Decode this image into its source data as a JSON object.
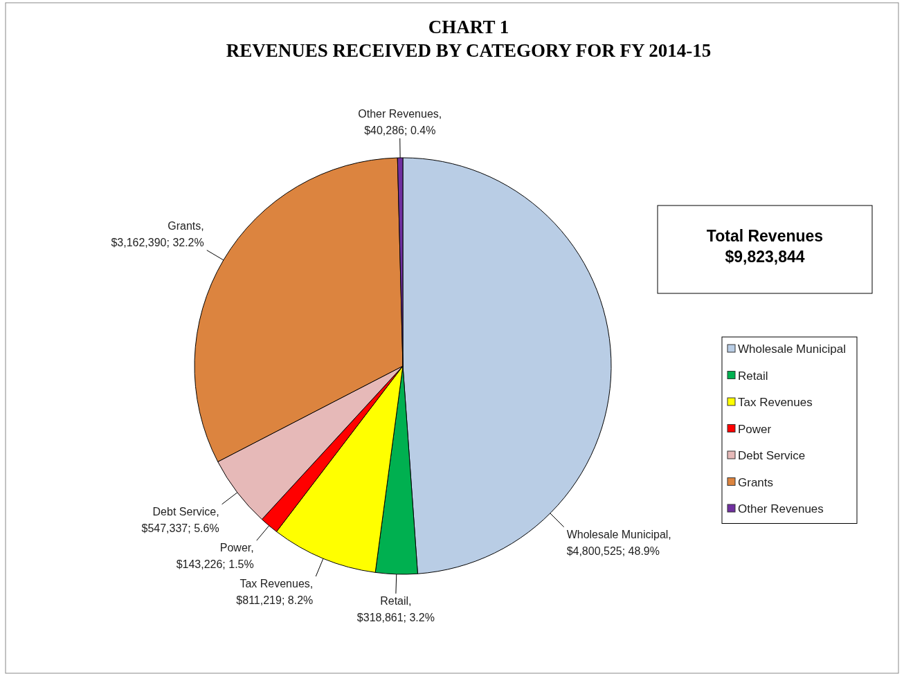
{
  "chart_data": {
    "type": "pie",
    "title": "CHART 1\nREVENUES RECEIVED BY CATEGORY FOR FY 2014-15",
    "categories": [
      "Wholesale Municipal",
      "Retail",
      "Tax Revenues",
      "Power",
      "Debt Service",
      "Grants",
      "Other Revenues"
    ],
    "values": [
      4800525,
      318861,
      811219,
      143226,
      547337,
      3162390,
      40286
    ],
    "value_labels": [
      "Wholesale Municipal,\n$4,800,525; 48.9%",
      "Retail,\n$318,861; 3.2%",
      "Tax Revenues,\n$811,219; 8.2%",
      "Power,\n$143,226; 1.5%",
      "Debt Service,\n$547,337; 5.6%",
      "Grants,\n$3,162,390; 32.2%",
      "Other Revenues,\n$40,286; 0.4%"
    ],
    "colors": [
      "#b9cde5",
      "#00b050",
      "#ffff00",
      "#ff0000",
      "#e6b9b8",
      "#dc843f",
      "#7030a0"
    ],
    "annotations": [
      "Total Revenues",
      "$9,823,844"
    ],
    "legend": "right"
  }
}
